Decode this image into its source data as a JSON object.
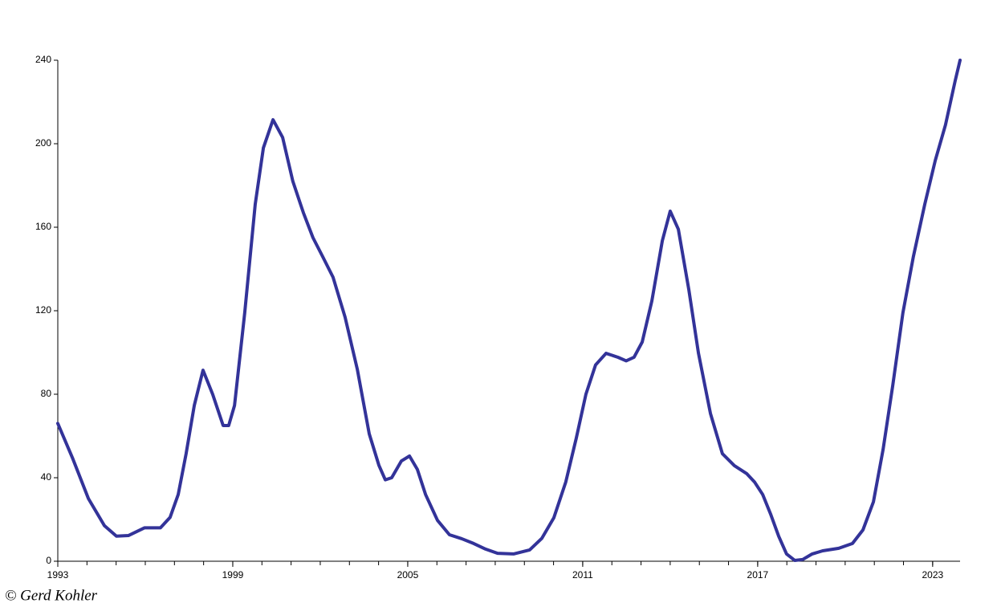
{
  "chart_data": {
    "type": "line",
    "credit": "© Gerd Kohler",
    "x": [
      1993.0,
      1993.5,
      1994.05,
      1994.6,
      1995.01,
      1995.42,
      1995.97,
      1996.52,
      1996.85,
      1997.13,
      1997.4,
      1997.68,
      1997.98,
      1998.31,
      1998.67,
      1998.86,
      1999.06,
      1999.41,
      1999.77,
      2000.05,
      2000.38,
      2000.71,
      2001.06,
      2001.42,
      2001.75,
      2002.08,
      2002.44,
      2002.85,
      2003.27,
      2003.68,
      2004.01,
      2004.23,
      2004.45,
      2004.78,
      2005.06,
      2005.33,
      2005.61,
      2006.02,
      2006.43,
      2006.85,
      2007.26,
      2007.67,
      2008.08,
      2008.63,
      2009.18,
      2009.6,
      2010.01,
      2010.42,
      2010.78,
      2011.11,
      2011.44,
      2011.8,
      2012.21,
      2012.49,
      2012.76,
      2013.04,
      2013.37,
      2013.73,
      2014.0,
      2014.28,
      2014.64,
      2014.97,
      2015.38,
      2015.79,
      2016.2,
      2016.62,
      2016.89,
      2017.17,
      2017.44,
      2017.72,
      2017.99,
      2018.27,
      2018.54,
      2018.87,
      2019.23,
      2019.78,
      2020.25,
      2020.61,
      2020.97,
      2021.3,
      2021.63,
      2021.98,
      2022.34,
      2022.73,
      2023.09,
      2023.44,
      2023.77,
      2023.94
    ],
    "series": [
      {
        "color": "#333399",
        "values": [
          66,
          49.6,
          30,
          17,
          12,
          12.3,
          16,
          16,
          21,
          32,
          51.5,
          74.6,
          91.5,
          80,
          65,
          65,
          74.6,
          119,
          171,
          198,
          211.5,
          203,
          182,
          167,
          155,
          146,
          136,
          117,
          92,
          61,
          46,
          39,
          40,
          48,
          50.4,
          44,
          32,
          19.6,
          12.7,
          10.8,
          8.5,
          5.8,
          3.8,
          3.5,
          5.4,
          11,
          20.8,
          38,
          59,
          80,
          94,
          99.6,
          97.7,
          96,
          97.7,
          105,
          124.6,
          153.5,
          167.7,
          159,
          130,
          99.6,
          70.8,
          51.5,
          45.8,
          42,
          38,
          32,
          22.7,
          12,
          3.5,
          0.4,
          0.8,
          3.5,
          5,
          6.2,
          8.5,
          15,
          28.5,
          53.5,
          84,
          119,
          146,
          171,
          192,
          209,
          230,
          240
        ]
      }
    ],
    "xlim": [
      1993,
      2023.94
    ],
    "xticks": [
      1993,
      1999,
      2005,
      2011,
      2017,
      2023
    ],
    "x_minor_ticks": [
      1993,
      1994,
      1995,
      1996,
      1997,
      1998,
      1999,
      2000,
      2001,
      2002,
      2003,
      2004,
      2005,
      2006,
      2007,
      2008,
      2009,
      2010,
      2011,
      2012,
      2013,
      2014,
      2015,
      2016,
      2017,
      2018,
      2019,
      2020,
      2021,
      2022,
      2023
    ],
    "ylim": [
      0,
      240
    ],
    "yticks": [
      0,
      40,
      80,
      120,
      160,
      200,
      240
    ],
    "grid": false
  }
}
